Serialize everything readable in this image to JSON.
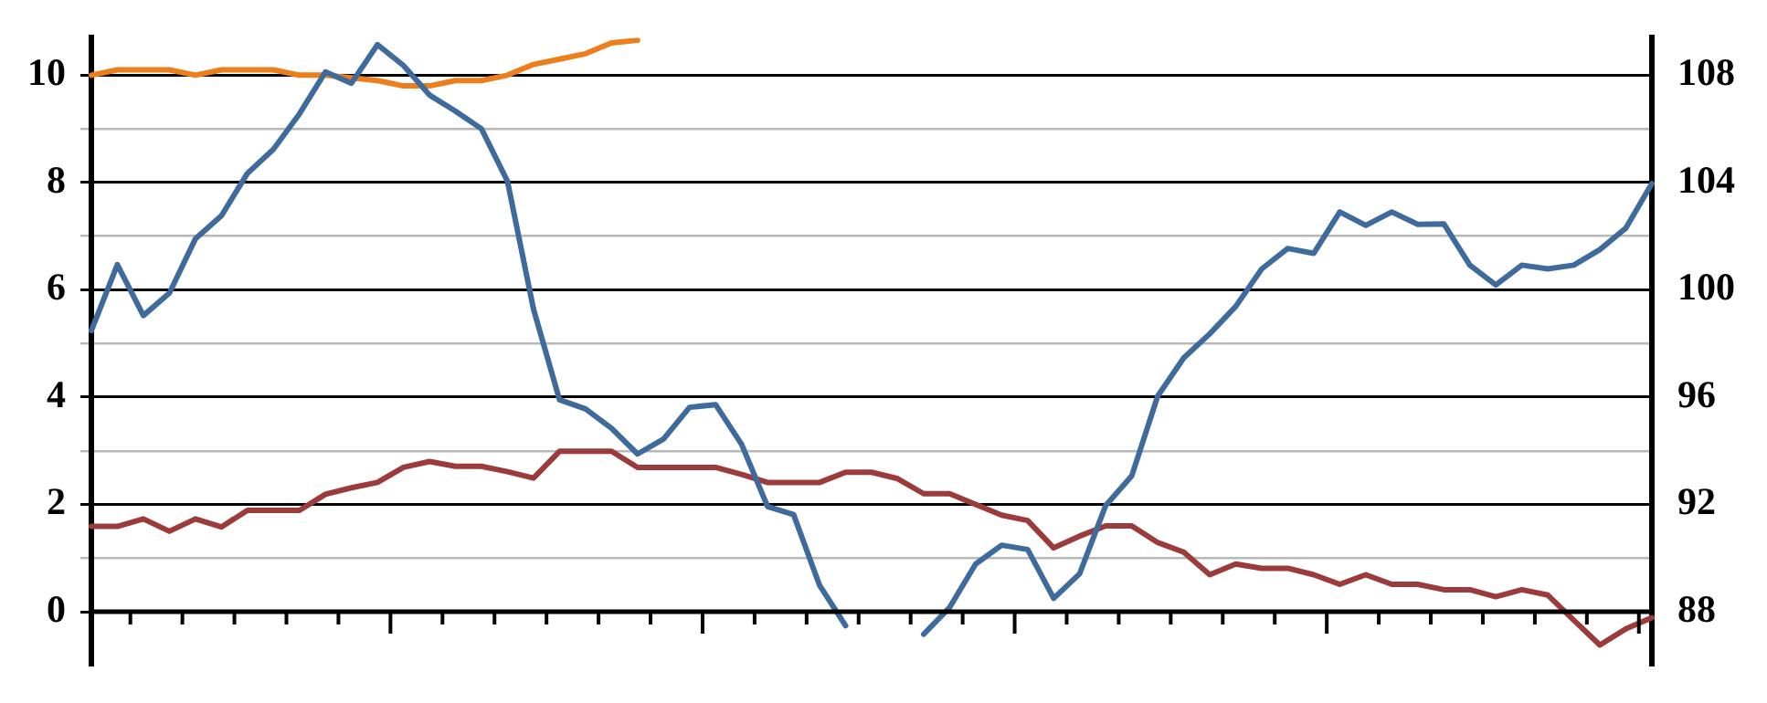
{
  "chart_data": {
    "type": "line",
    "categories": [
      null,
      null,
      null,
      null,
      null,
      null,
      null,
      null,
      null,
      null,
      null,
      null,
      null,
      null,
      null,
      null,
      null,
      null,
      null,
      null,
      null,
      null,
      null,
      null,
      null,
      null,
      null,
      null,
      null,
      null,
      null,
      null,
      null,
      null,
      null,
      null,
      null,
      null,
      null,
      null,
      null,
      null,
      null,
      null,
      null,
      null,
      null,
      null,
      null,
      null,
      null,
      null,
      null,
      null,
      null,
      null,
      null,
      null,
      null,
      null,
      null
    ],
    "series": [
      {
        "color": "#3e6b9c",
        "values": [
          5.24,
          6.47,
          5.52,
          5.94,
          6.95,
          7.38,
          8.17,
          8.62,
          9.28,
          10.06,
          9.85,
          10.57,
          10.18,
          9.63,
          9.33,
          9.0,
          8.02,
          5.64,
          3.95,
          3.78,
          3.42,
          2.94,
          3.22,
          3.81,
          3.86,
          3.12,
          1.96,
          1.81,
          0.49,
          -0.26,
          null,
          null,
          -0.42,
          0.08,
          0.89,
          1.24,
          1.16,
          0.25,
          0.71,
          1.98,
          2.53,
          4.02,
          4.73,
          5.18,
          5.69,
          6.39,
          6.77,
          6.68,
          7.45,
          7.2,
          7.45,
          7.22,
          7.23,
          6.46,
          6.09,
          6.46,
          6.39,
          6.46,
          6.75,
          7.15,
          7.98
        ]
      },
      {
        "color": "#9c3b3b",
        "values": [
          1.59,
          1.59,
          1.73,
          1.5,
          1.73,
          1.58,
          1.89,
          1.89,
          1.89,
          2.19,
          2.31,
          2.41,
          2.69,
          2.8,
          2.71,
          2.71,
          2.61,
          2.49,
          2.99,
          2.99,
          2.99,
          2.69,
          2.69,
          2.69,
          2.69,
          2.56,
          2.41,
          2.41,
          2.41,
          2.6,
          2.6,
          2.48,
          2.2,
          2.2,
          2.0,
          1.8,
          1.7,
          1.19,
          1.41,
          1.6,
          1.6,
          1.29,
          1.11,
          0.69,
          0.89,
          0.81,
          0.81,
          0.69,
          0.51,
          0.69,
          0.51,
          0.51,
          0.41,
          0.41,
          0.28,
          0.41,
          0.31,
          -0.16,
          -0.62,
          -0.32,
          -0.11
        ]
      },
      {
        "color": "#ec7f1c",
        "axis": "y2",
        "values": [
          108.0,
          108.2,
          108.2,
          108.2,
          108.0,
          108.2,
          108.2,
          108.2,
          108.0,
          108.0,
          107.9,
          107.8,
          107.6,
          107.6,
          107.8,
          107.8,
          108.0,
          108.4,
          108.6,
          108.8,
          109.2,
          109.3,
          null,
          null,
          null,
          null,
          null,
          null,
          null,
          null,
          null,
          null,
          null,
          null,
          null,
          null,
          null,
          null,
          null,
          null,
          null,
          null,
          null,
          null,
          null,
          null,
          null,
          null,
          null,
          null,
          null,
          null,
          null,
          null,
          null,
          null,
          null,
          null,
          null,
          null,
          null
        ]
      }
    ],
    "ylim": [
      -1,
      10.7
    ],
    "yticks": [
      0,
      {
        "value": 1,
        "label": null
      },
      2,
      {
        "value": 3,
        "label": null
      },
      4,
      {
        "value": 5,
        "label": null
      },
      6,
      {
        "value": 7,
        "label": null
      },
      8,
      {
        "value": 9,
        "label": null
      },
      10
    ],
    "y2lim": [
      86,
      109.4
    ],
    "y2ticks": [
      88,
      92,
      96,
      100,
      104,
      108
    ],
    "grid": "y",
    "legend": false,
    "tick_labels": "y",
    "marker": "none",
    "line_style": "solid"
  }
}
